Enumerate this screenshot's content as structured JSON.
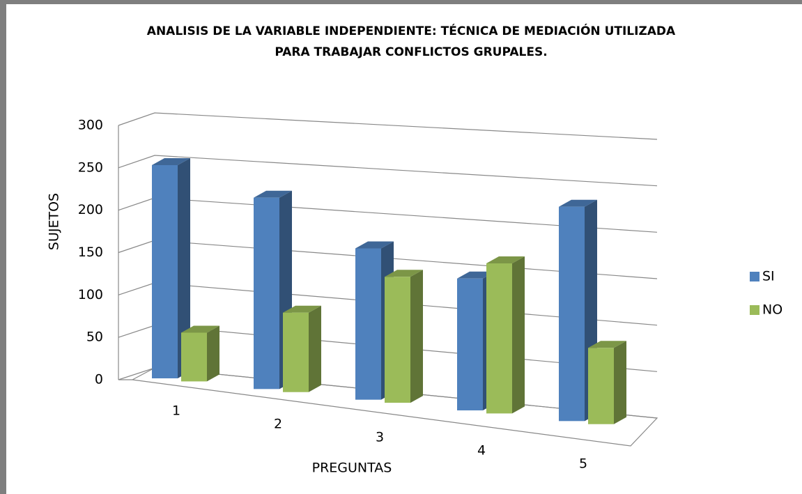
{
  "chart_data": {
    "type": "bar3d",
    "title": [
      "ANALISIS DE LA VARIABLE INDEPENDIENTE: TÉCNICA DE MEDIACIÓN UTILIZADA",
      "PARA TRABAJAR CONFLICTOS GRUPALES."
    ],
    "x_label": "PREGUNTAS",
    "y_label": "SUJETOS",
    "categories": [
      "1",
      "2",
      "3",
      "4",
      "5"
    ],
    "series": [
      {
        "name": "SI",
        "color": "#4f81bd",
        "values": [
          255,
          225,
          175,
          150,
          240
        ]
      },
      {
        "name": "NO",
        "color": "#9bbb59",
        "values": [
          58,
          93,
          145,
          170,
          85
        ]
      }
    ],
    "ylim": [
      0,
      300
    ],
    "yticks": [
      0,
      50,
      100,
      150,
      200,
      250,
      300
    ],
    "grid": true,
    "legend": "right"
  }
}
